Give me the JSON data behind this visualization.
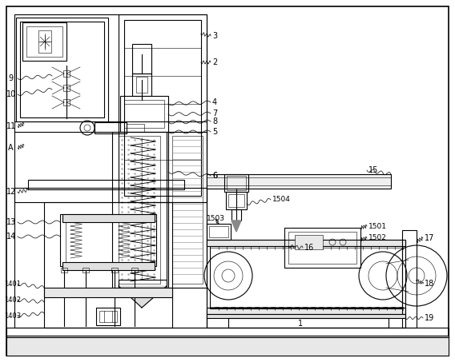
{
  "bg_color": "#ffffff",
  "lw": 0.8,
  "tlw": 0.4,
  "fig_width": 5.68,
  "fig_height": 4.53,
  "dpi": 100
}
